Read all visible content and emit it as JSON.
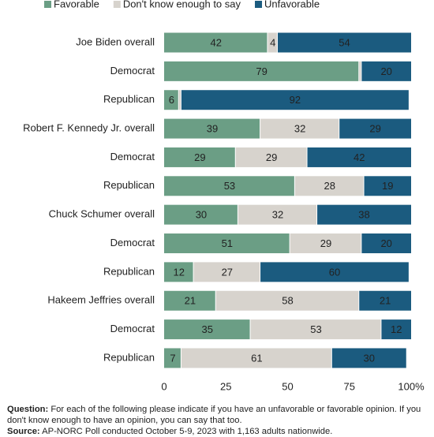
{
  "chart_data": {
    "type": "stacked-bar-horizontal",
    "categories": [
      "Joe Biden overall",
      "Democrat",
      "Republican",
      "Robert F. Kennedy Jr.  overall",
      "Democrat",
      "Republican",
      "Chuck Schumer overall",
      "Democrat",
      "Republican",
      "Hakeem Jeffries overall",
      "Democrat",
      "Republican"
    ],
    "series": [
      {
        "name": "Favorable",
        "color": "#6b9e85",
        "values": [
          42,
          79,
          6,
          39,
          29,
          53,
          30,
          51,
          12,
          21,
          35,
          7
        ]
      },
      {
        "name": "Don't know enough to say",
        "color": "#d7d3cd",
        "values": [
          4,
          1,
          1,
          32,
          29,
          28,
          32,
          29,
          27,
          58,
          53,
          61
        ]
      },
      {
        "name": "Unfavorable",
        "color": "#1b5b7f",
        "values": [
          54,
          20,
          92,
          29,
          42,
          19,
          38,
          20,
          60,
          21,
          12,
          30
        ]
      }
    ],
    "xlim": [
      0,
      100
    ],
    "xticks": [
      0,
      25,
      50,
      75,
      {
        "value": 100,
        "label": "100%"
      }
    ],
    "grid": false,
    "legend": "top"
  },
  "notes": {
    "question_label": "Question:",
    "question": "For each of the following please indicate if you have an unfavorable or favorable opinion. If you don't know enough to have an opinion, you can say that too.",
    "source_label": "Source:",
    "source": "AP-NORC Poll conducted October 5-9, 2023 with 1,163 adults nationwide."
  }
}
